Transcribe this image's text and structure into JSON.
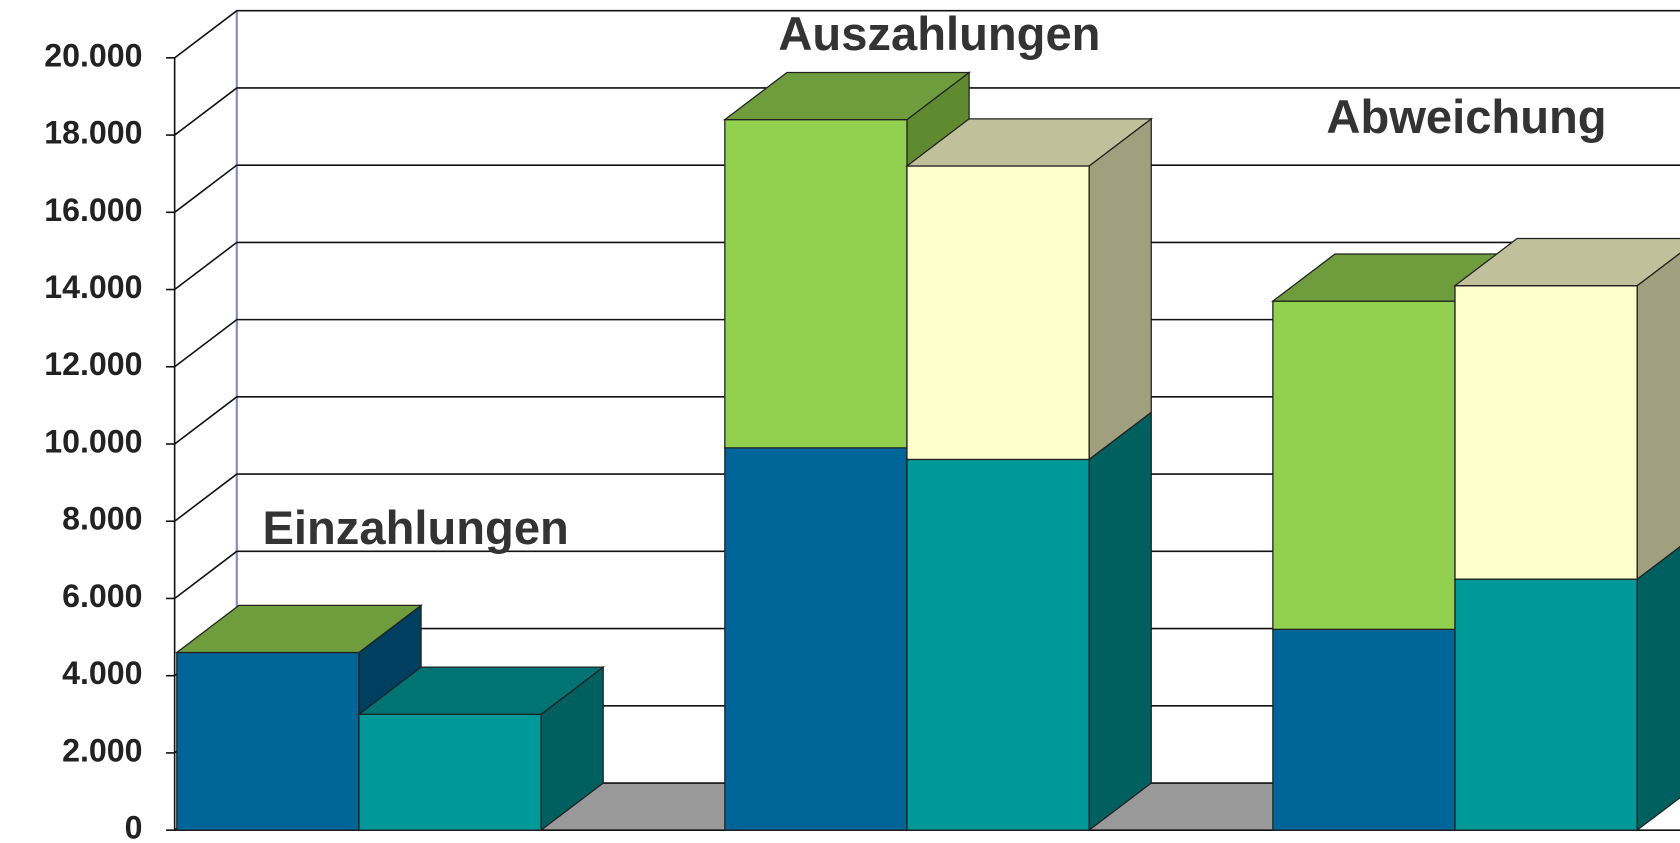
{
  "chart_data": {
    "type": "bar3d_stacked",
    "categories": [
      "Einzahlungen",
      "Auszahlungen",
      "Abweichung"
    ],
    "series": [
      {
        "stack": 0,
        "color": "#006699",
        "side": "#003f5f",
        "top": "#6f9c3d",
        "values": [
          4600,
          9900,
          5200
        ]
      },
      {
        "stack": 0,
        "color": "#92d050",
        "side": "#5f8a30",
        "top": "#6f9c3d",
        "values": [
          0,
          8500,
          8500
        ]
      },
      {
        "stack": 1,
        "color": "#009999",
        "side": "#006060",
        "top": "#007373",
        "values": [
          3000,
          9600,
          6500
        ]
      },
      {
        "stack": 1,
        "color": "#ffffcc",
        "side": "#a0a07e",
        "top": "#c0c09a",
        "values": [
          0,
          7600,
          7600
        ]
      }
    ],
    "ylim": [
      0,
      20000
    ],
    "yticks": [
      0,
      {
        "value": 2000,
        "label": "2.000"
      },
      {
        "value": 4000,
        "label": "4.000"
      },
      {
        "value": 6000,
        "label": "6.000"
      },
      {
        "value": 8000,
        "label": "8.000"
      },
      {
        "value": 10000,
        "label": "10.000"
      },
      {
        "value": 12000,
        "label": "12.000"
      },
      {
        "value": 14000,
        "label": "14.000"
      },
      {
        "value": 16000,
        "label": "16.000"
      },
      {
        "value": 18000,
        "label": "18.000"
      },
      {
        "value": 20000,
        "label": "20.000"
      }
    ],
    "grid": true
  }
}
